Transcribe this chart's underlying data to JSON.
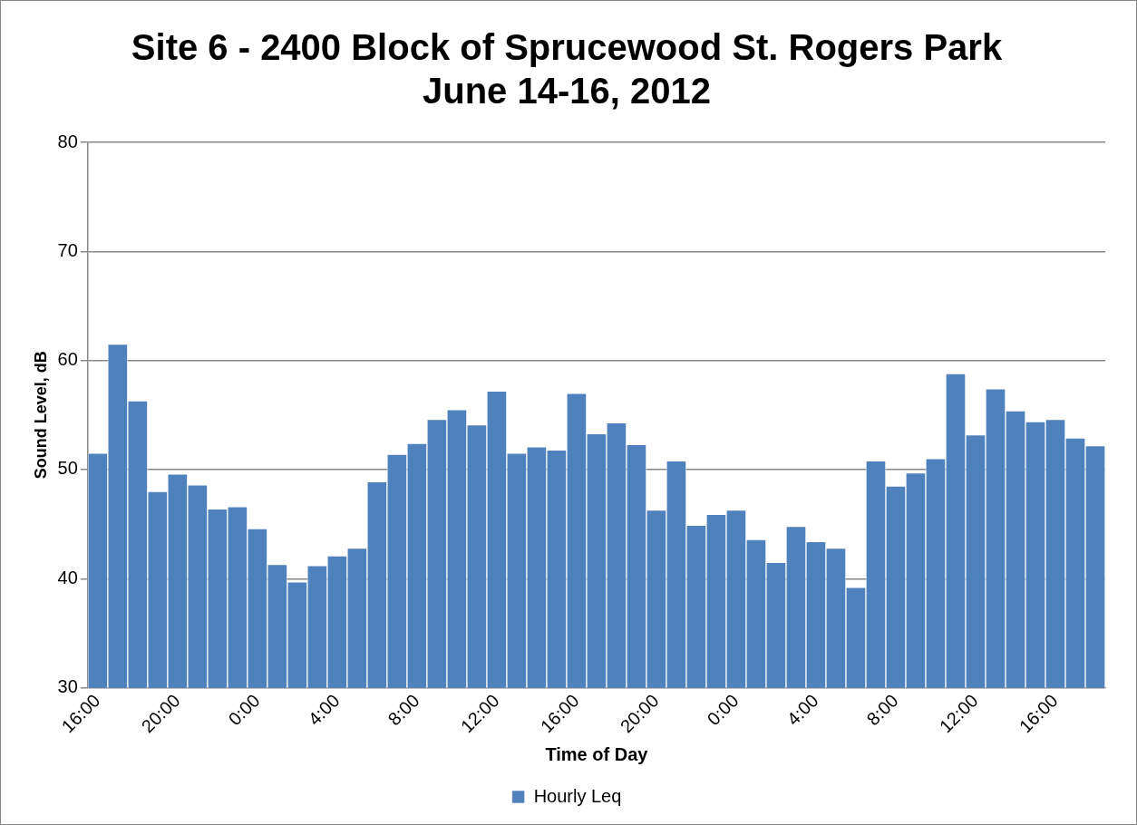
{
  "chart_data": {
    "type": "bar",
    "title": "Site 6 - 2400 Block of Sprucewood St. Rogers Park",
    "subtitle": "June 14-16, 2012",
    "xlabel": "Time of Day",
    "ylabel": "Sound Level, dB",
    "categories": [
      "16:00",
      null,
      null,
      null,
      "20:00",
      null,
      null,
      null,
      "0:00",
      null,
      null,
      null,
      "4:00",
      null,
      null,
      null,
      "8:00",
      null,
      null,
      null,
      "12:00",
      null,
      null,
      null,
      "16:00",
      null,
      null,
      null,
      "20:00",
      null,
      null,
      null,
      "0:00",
      null,
      null,
      null,
      "4:00",
      null,
      null,
      null,
      "8:00",
      null,
      null,
      null,
      "12:00",
      null,
      null,
      null,
      "16:00",
      null,
      null
    ],
    "series": [
      {
        "name": "Hourly Leq",
        "color": "#4f81bd",
        "values": [
          51.5,
          61.5,
          56.3,
          48,
          49.6,
          48.6,
          46.4,
          46.6,
          44.6,
          41.3,
          39.7,
          41.2,
          42.1,
          42.8,
          48.9,
          51.4,
          52.4,
          54.6,
          55.5,
          54.1,
          57.2,
          51.5,
          52.1,
          51.8,
          57,
          53.3,
          54.3,
          52.3,
          46.3,
          50.8,
          44.9,
          45.9,
          46.3,
          43.6,
          41.5,
          44.8,
          43.4,
          42.8,
          39.2,
          50.8,
          48.5,
          49.7,
          51,
          58.8,
          53.2,
          57.4,
          55.4,
          54.4,
          54.6,
          52.9,
          52.2
        ]
      }
    ],
    "ylim": [
      30,
      80
    ],
    "yticks": [
      30,
      40,
      50,
      60,
      70,
      80
    ],
    "grid": "y",
    "legend": "bottom"
  }
}
